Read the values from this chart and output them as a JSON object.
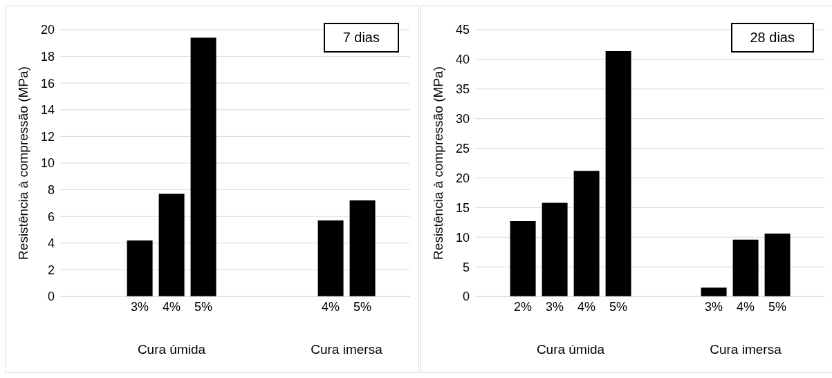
{
  "chart_data": [
    {
      "type": "bar",
      "title": "7 dias",
      "ylabel": "Resistência à compressão (MPa)",
      "categories": [
        null,
        null,
        "3%",
        "4%",
        "5%",
        null,
        null,
        null,
        "4%",
        "5%",
        null
      ],
      "values": [
        null,
        null,
        4.2,
        7.7,
        19.4,
        null,
        null,
        null,
        5.7,
        7.2,
        null
      ],
      "color": "#000000",
      "ylim": [
        0,
        20
      ],
      "yticks": [
        0,
        2,
        4,
        6,
        8,
        10,
        12,
        14,
        16,
        18,
        20
      ],
      "grid": "y",
      "annotations": [
        "Cura úmida",
        "Cura imersa"
      ]
    },
    {
      "type": "bar",
      "title": "28 dias",
      "ylabel": "Resistência à compressão (MPa)",
      "categories": [
        null,
        "2%",
        "3%",
        "4%",
        "5%",
        null,
        null,
        "3%",
        "4%",
        "5%",
        null
      ],
      "values": [
        null,
        12.7,
        15.8,
        21.2,
        41.4,
        null,
        null,
        1.5,
        9.6,
        10.6,
        null
      ],
      "color": "#000000",
      "ylim": [
        0,
        45
      ],
      "yticks": [
        0,
        5,
        10,
        15,
        20,
        25,
        30,
        35,
        40,
        45
      ],
      "grid": "y",
      "annotations": [
        "Cura úmida",
        "Cura imersa"
      ]
    }
  ]
}
